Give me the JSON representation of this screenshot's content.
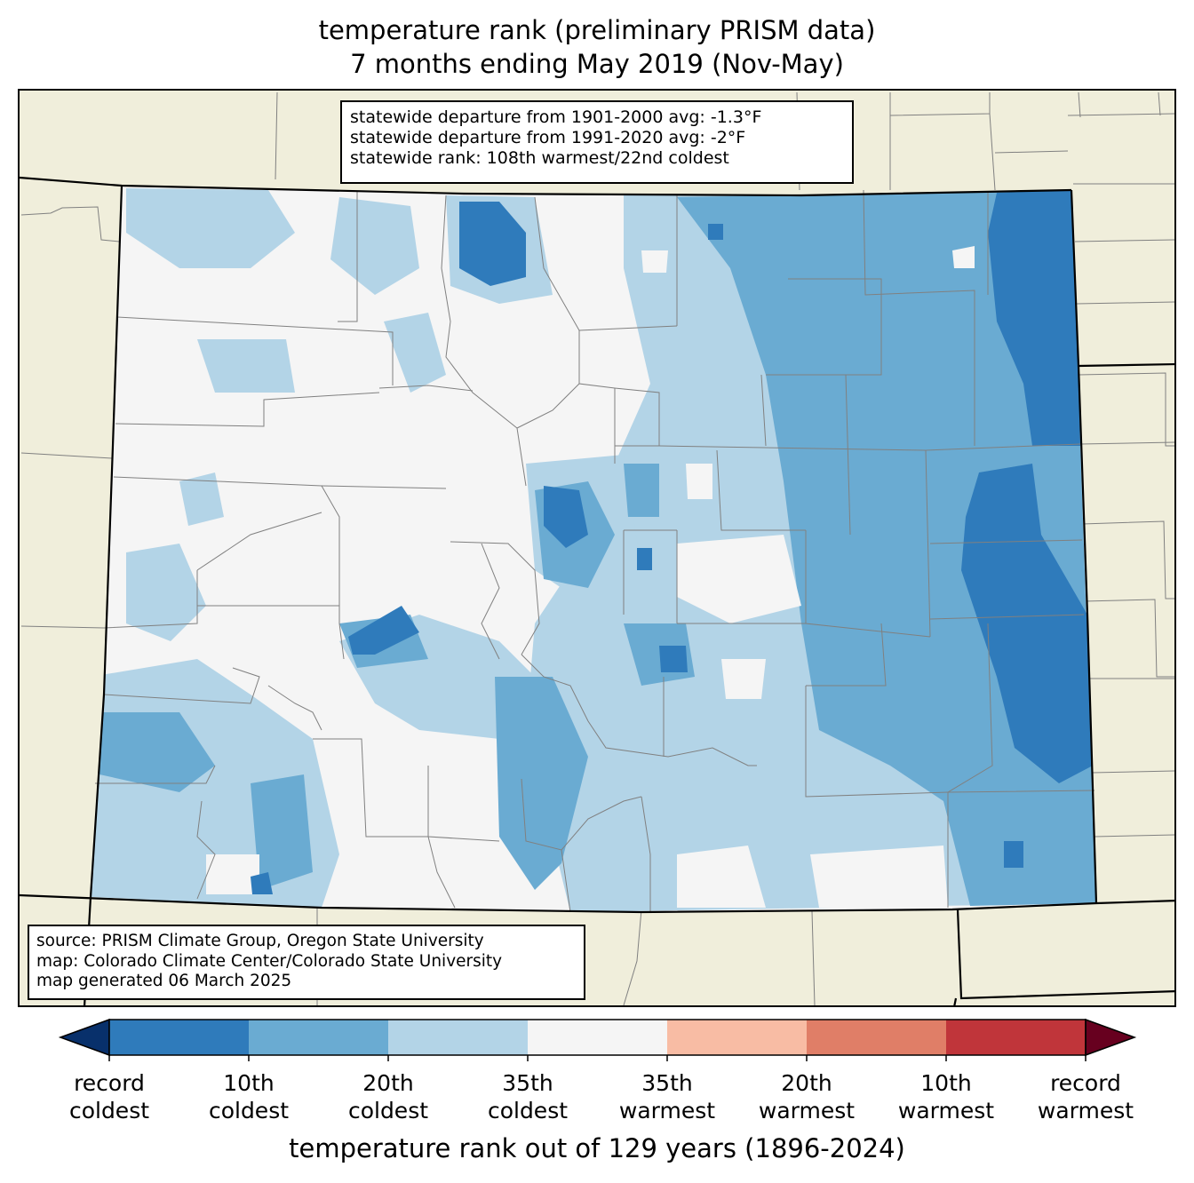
{
  "title": {
    "line1": "temperature rank (preliminary PRISM data)",
    "line2": "7 months ending May 2019 (Nov-May)"
  },
  "stats": {
    "line1": "statewide departure from 1901-2000 avg: -1.3°F",
    "line2": "statewide departure from 1991-2020 avg: -2°F",
    "line3": "statewide rank: 108th warmest/22nd coldest"
  },
  "source": {
    "line1": "source: PRISM Climate Group, Oregon State University",
    "line2": "map: Colorado Climate Center/Colorado State University",
    "line3": "map generated 06 March 2025"
  },
  "colorbar": {
    "title": "temperature rank out of 129 years (1896-2024)",
    "colors": {
      "below_record_coldest": "#08306b",
      "record_to_10th_coldest": "#2f7bbb",
      "coldest_10_to_20": "#6aabd2",
      "coldest_20_to_35": "#b3d4e7",
      "near_normal": "#f5f5f5",
      "warmest_35_to_20": "#f8bca4",
      "warmest_20_to_10": "#e07e67",
      "warmest_10_to_record": "#c0353a",
      "above_record_warmest": "#67001f"
    },
    "tick_labels": [
      {
        "l1": "record",
        "l2": "coldest"
      },
      {
        "l1": "10th",
        "l2": "coldest"
      },
      {
        "l1": "20th",
        "l2": "coldest"
      },
      {
        "l1": "35th",
        "l2": "coldest"
      },
      {
        "l1": "35th",
        "l2": "warmest"
      },
      {
        "l1": "20th",
        "l2": "warmest"
      },
      {
        "l1": "10th",
        "l2": "warmest"
      },
      {
        "l1": "record",
        "l2": "warmest"
      }
    ]
  },
  "map": {
    "land_color": "#f0eedb",
    "county_line_color": "#808080",
    "state_line_color": "#000000"
  }
}
